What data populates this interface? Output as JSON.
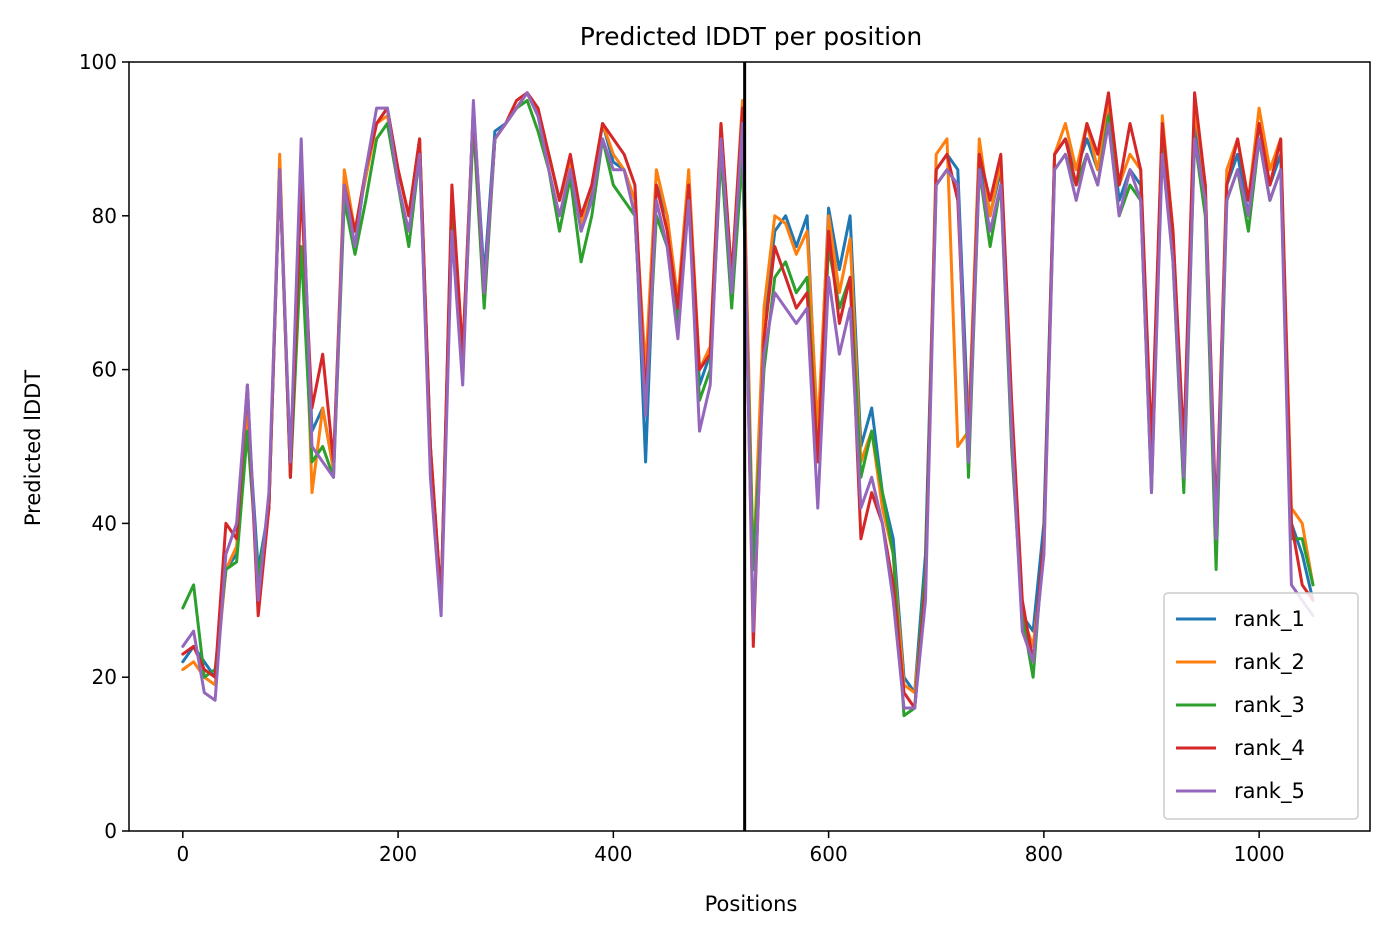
{
  "chart_data": {
    "type": "line",
    "title": "Predicted lDDT per position",
    "xlabel": "Positions",
    "ylabel": "Predicted lDDT",
    "xlim": [
      -50,
      1103
    ],
    "ylim": [
      0,
      100
    ],
    "xticks": [
      0,
      200,
      400,
      600,
      800,
      1000
    ],
    "yticks": [
      0,
      20,
      40,
      60,
      80,
      100
    ],
    "grid": false,
    "legend_position": "lower-right",
    "chain_break": 522,
    "x": [
      0,
      10,
      20,
      30,
      40,
      50,
      60,
      70,
      80,
      90,
      100,
      110,
      120,
      130,
      140,
      150,
      160,
      170,
      180,
      190,
      200,
      210,
      220,
      230,
      240,
      250,
      260,
      270,
      280,
      290,
      300,
      310,
      320,
      330,
      340,
      350,
      360,
      370,
      380,
      390,
      400,
      410,
      420,
      430,
      440,
      450,
      460,
      470,
      480,
      490,
      500,
      510,
      520,
      530,
      540,
      550,
      560,
      570,
      580,
      590,
      600,
      610,
      620,
      630,
      640,
      650,
      660,
      670,
      680,
      690,
      700,
      710,
      720,
      730,
      740,
      750,
      760,
      770,
      780,
      790,
      800,
      810,
      820,
      830,
      840,
      850,
      860,
      870,
      880,
      890,
      900,
      910,
      920,
      930,
      940,
      950,
      960,
      970,
      980,
      990,
      1000,
      1010,
      1020,
      1030,
      1040,
      1050
    ],
    "series": [
      {
        "name": "rank_1",
        "color": "#1f77b4",
        "values": [
          22,
          24,
          22,
          20,
          34,
          36,
          55,
          34,
          42,
          86,
          47,
          88,
          52,
          55,
          47,
          84,
          76,
          86,
          92,
          94,
          86,
          80,
          90,
          50,
          30,
          82,
          60,
          94,
          72,
          91,
          92,
          94,
          96,
          93,
          88,
          82,
          87,
          79,
          83,
          92,
          87,
          86,
          82,
          48,
          84,
          80,
          68,
          84,
          58,
          62,
          90,
          70,
          88,
          34,
          66,
          78,
          80,
          76,
          80,
          50,
          81,
          73,
          80,
          50,
          55,
          44,
          38,
          20,
          18,
          36,
          86,
          88,
          86,
          52,
          88,
          80,
          86,
          54,
          28,
          26,
          40,
          88,
          90,
          86,
          90,
          86,
          94,
          82,
          86,
          84,
          46,
          92,
          76,
          46,
          92,
          82,
          36,
          84,
          88,
          80,
          92,
          84,
          88,
          40,
          36,
          30
        ]
      },
      {
        "name": "rank_2",
        "color": "#ff7f0e",
        "values": [
          21,
          22,
          20,
          19,
          34,
          37,
          54,
          32,
          42,
          88,
          46,
          86,
          44,
          55,
          47,
          86,
          78,
          85,
          92,
          93,
          86,
          80,
          90,
          50,
          30,
          83,
          62,
          94,
          70,
          90,
          92,
          94,
          96,
          93,
          88,
          82,
          87,
          79,
          84,
          92,
          88,
          86,
          82,
          60,
          86,
          80,
          69,
          86,
          60,
          63,
          92,
          72,
          95,
          34,
          68,
          80,
          79,
          75,
          78,
          52,
          80,
          70,
          77,
          48,
          52,
          42,
          36,
          19,
          18,
          32,
          88,
          90,
          50,
          52,
          90,
          80,
          87,
          52,
          28,
          24,
          36,
          88,
          92,
          86,
          92,
          86,
          95,
          84,
          88,
          86,
          48,
          93,
          78,
          48,
          94,
          84,
          38,
          86,
          90,
          82,
          94,
          86,
          90,
          42,
          40,
          32
        ]
      },
      {
        "name": "rank_3",
        "color": "#2ca02c",
        "values": [
          29,
          32,
          20,
          21,
          34,
          35,
          52,
          33,
          42,
          86,
          46,
          76,
          48,
          50,
          46,
          82,
          75,
          82,
          90,
          92,
          84,
          76,
          88,
          48,
          30,
          80,
          60,
          92,
          68,
          90,
          92,
          94,
          95,
          91,
          86,
          78,
          85,
          74,
          80,
          90,
          84,
          82,
          80,
          54,
          80,
          76,
          66,
          82,
          56,
          60,
          88,
          68,
          88,
          34,
          60,
          72,
          74,
          70,
          72,
          48,
          76,
          68,
          72,
          46,
          52,
          44,
          36,
          15,
          16,
          34,
          84,
          86,
          84,
          46,
          86,
          76,
          84,
          50,
          28,
          20,
          38,
          86,
          88,
          84,
          88,
          84,
          93,
          80,
          84,
          82,
          44,
          90,
          74,
          44,
          90,
          80,
          34,
          82,
          86,
          78,
          90,
          82,
          86,
          38,
          38,
          32
        ]
      },
      {
        "name": "rank_4",
        "color": "#d62728",
        "values": [
          23,
          24,
          21,
          20,
          40,
          38,
          58,
          28,
          42,
          86,
          46,
          84,
          55,
          62,
          48,
          84,
          78,
          86,
          92,
          94,
          86,
          80,
          90,
          50,
          30,
          84,
          62,
          94,
          70,
          90,
          92,
          95,
          96,
          94,
          88,
          82,
          88,
          80,
          84,
          92,
          90,
          88,
          84,
          56,
          84,
          78,
          68,
          84,
          60,
          62,
          92,
          72,
          94,
          24,
          64,
          76,
          72,
          68,
          70,
          48,
          78,
          66,
          72,
          38,
          44,
          40,
          32,
          18,
          16,
          32,
          86,
          88,
          82,
          50,
          88,
          82,
          88,
          56,
          30,
          22,
          38,
          88,
          90,
          84,
          92,
          88,
          96,
          84,
          92,
          86,
          50,
          92,
          78,
          50,
          96,
          84,
          40,
          84,
          90,
          82,
          92,
          84,
          90,
          40,
          32,
          30
        ]
      },
      {
        "name": "rank_5",
        "color": "#9467bd",
        "values": [
          24,
          26,
          18,
          17,
          36,
          40,
          58,
          30,
          44,
          86,
          48,
          90,
          50,
          48,
          46,
          84,
          76,
          86,
          94,
          94,
          84,
          78,
          88,
          46,
          28,
          78,
          58,
          95,
          70,
          90,
          92,
          94,
          96,
          93,
          86,
          80,
          86,
          78,
          82,
          90,
          86,
          86,
          80,
          54,
          82,
          76,
          64,
          82,
          52,
          58,
          90,
          70,
          92,
          26,
          62,
          70,
          68,
          66,
          68,
          42,
          72,
          62,
          68,
          42,
          46,
          40,
          30,
          16,
          16,
          30,
          84,
          86,
          84,
          48,
          86,
          78,
          84,
          52,
          26,
          22,
          36,
          86,
          88,
          82,
          88,
          84,
          92,
          80,
          86,
          82,
          44,
          88,
          74,
          46,
          90,
          82,
          38,
          82,
          86,
          80,
          90,
          82,
          86,
          32,
          30,
          28
        ]
      }
    ]
  }
}
